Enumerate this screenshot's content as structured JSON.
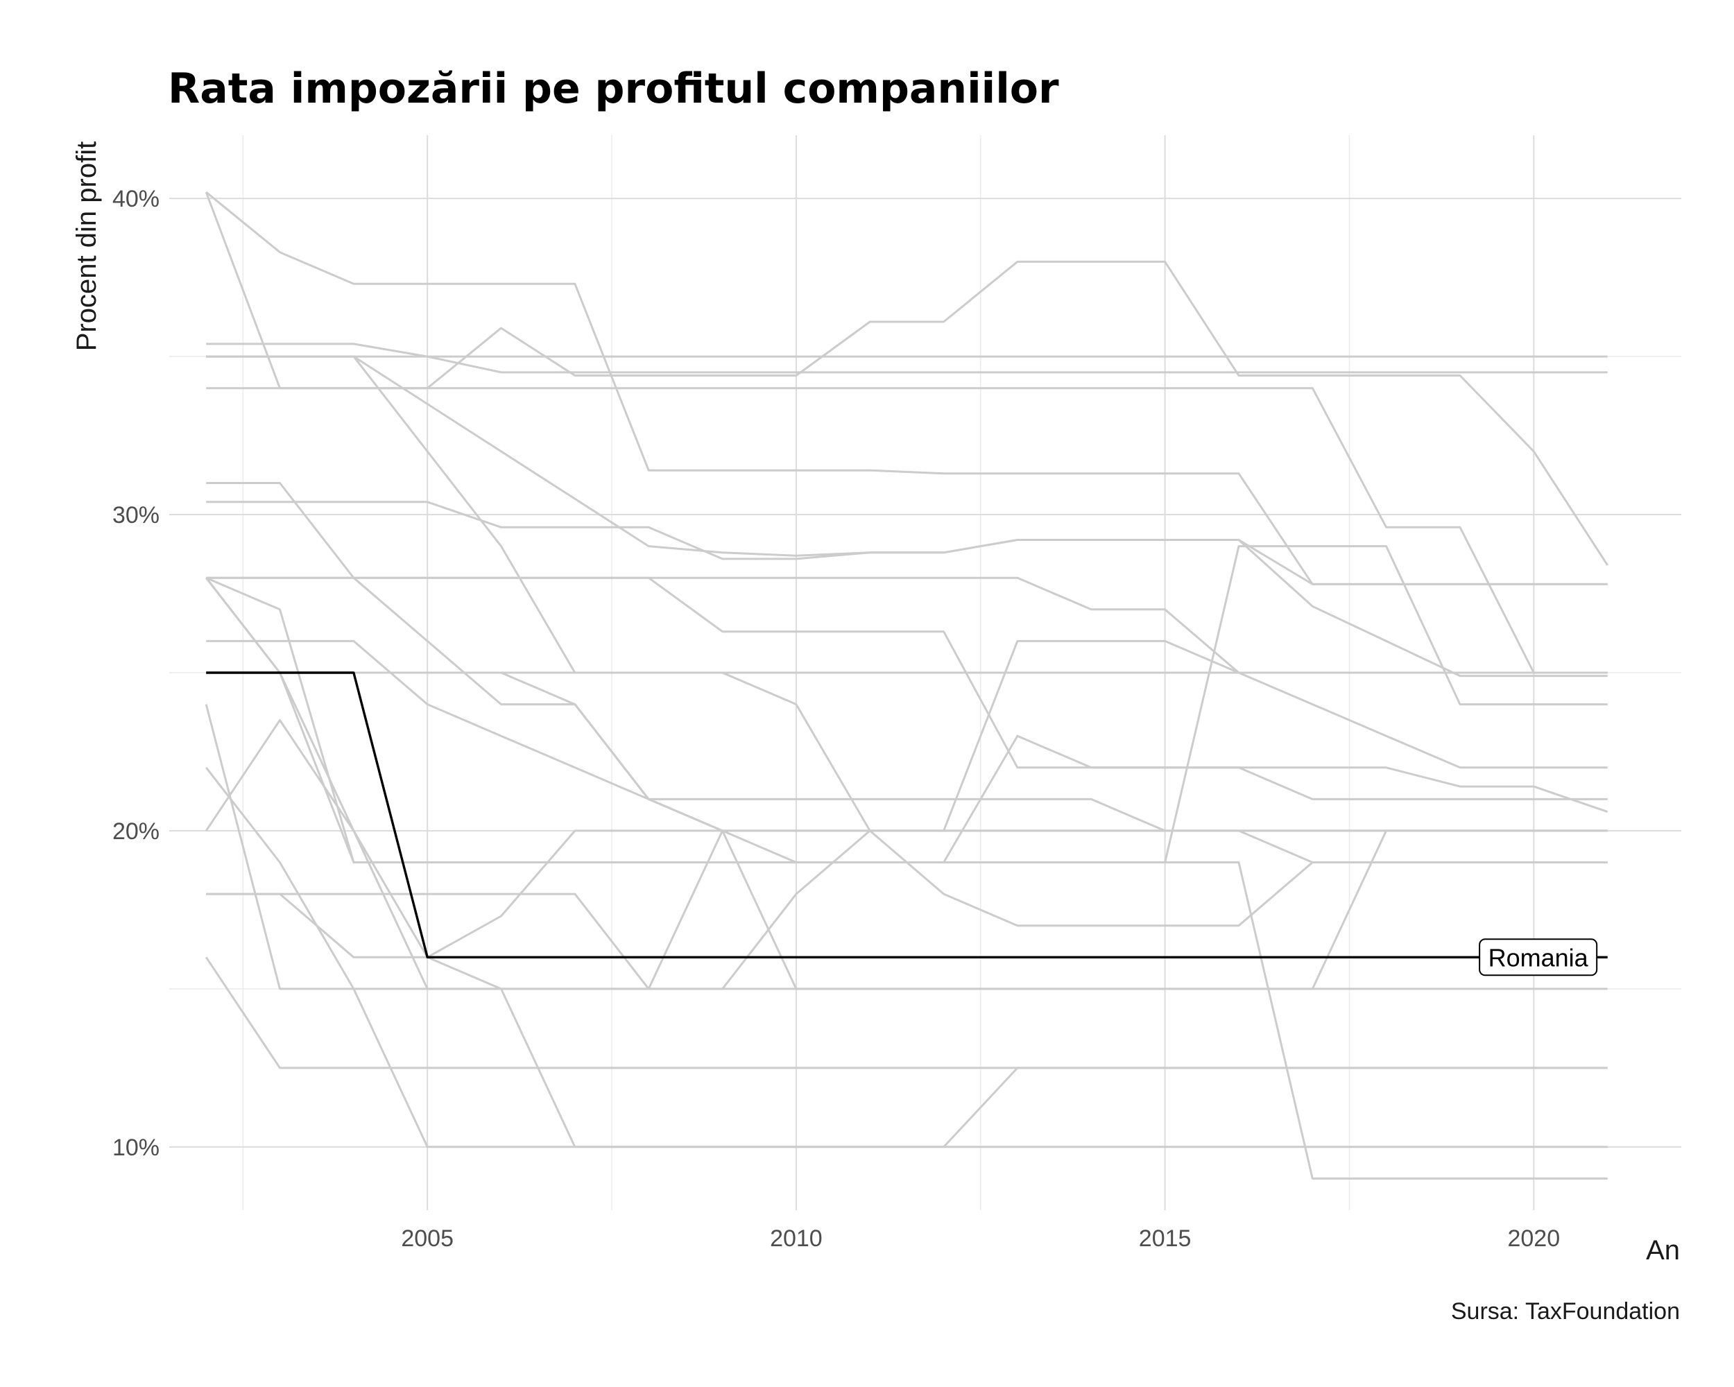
{
  "chart_data": {
    "type": "line",
    "title": "Rata impozării pe profitul companiilor",
    "xlabel": "An",
    "ylabel": "Procent din profit",
    "caption": "Sursa: TaxFoundation",
    "xlim": [
      2001.5,
      2022
    ],
    "ylim": [
      8,
      42
    ],
    "x_ticks": [
      2005,
      2010,
      2015,
      2020
    ],
    "y_ticks": [
      {
        "value": 10,
        "label": "10%"
      },
      {
        "value": 20,
        "label": "20%"
      },
      {
        "value": 30,
        "label": "30%"
      },
      {
        "value": 40,
        "label": "40%"
      }
    ],
    "grid": true,
    "line_color": "#cccccc",
    "highlight_color": "#000000",
    "x": [
      2002,
      2003,
      2004,
      2005,
      2006,
      2007,
      2008,
      2009,
      2010,
      2011,
      2012,
      2013,
      2014,
      2015,
      2016,
      2017,
      2018,
      2019,
      2020,
      2021
    ],
    "highlight": {
      "name": "Romania",
      "values": [
        25,
        25,
        25,
        16,
        16,
        16,
        16,
        16,
        16,
        16,
        16,
        16,
        16,
        16,
        16,
        16,
        16,
        16,
        16,
        16
      ]
    },
    "series": [
      {
        "values": [
          40.2,
          38.3,
          37.3,
          37.3,
          37.3,
          37.3,
          31.4,
          31.4,
          31.4,
          31.4,
          31.3,
          31.3,
          31.3,
          31.3,
          31.3,
          27.8,
          27.8,
          27.8,
          27.8,
          27.8
        ]
      },
      {
        "values": [
          40.2,
          34,
          34,
          34,
          35.9,
          34.4,
          34.4,
          34.4,
          34.4,
          36.1,
          36.1,
          38,
          38,
          38,
          34.4,
          34.4,
          34.4,
          34.4,
          32,
          28.4
        ]
      },
      {
        "values": [
          35.4,
          35.4,
          35.4,
          35,
          34.5,
          34.5,
          34.5,
          34.5,
          34.5,
          34.5,
          34.5,
          34.5,
          34.5,
          34.5,
          34.5,
          34.5,
          34.5,
          34.5,
          34.5,
          34.5
        ]
      },
      {
        "values": [
          35,
          35,
          35,
          35,
          35,
          35,
          35,
          35,
          35,
          35,
          35,
          35,
          35,
          35,
          35,
          35,
          35,
          35,
          35,
          35
        ]
      },
      {
        "values": [
          34,
          34,
          34,
          34,
          34,
          34,
          34,
          34,
          34,
          34,
          34,
          34,
          34,
          34,
          34,
          34,
          29.6,
          29.6,
          25,
          25
        ]
      },
      {
        "values": [
          35,
          35,
          35,
          32,
          29,
          25,
          25,
          25,
          25,
          25,
          25,
          25,
          25,
          25,
          25,
          25,
          25,
          25,
          25,
          25
        ]
      },
      {
        "values": [
          35,
          35,
          35,
          33.5,
          32,
          30.5,
          29,
          28.8,
          28.7,
          28.8,
          28.8,
          29.2,
          29.2,
          29.2,
          29.2,
          27.1,
          26,
          24.9,
          24.9,
          24.9
        ]
      },
      {
        "values": [
          31,
          31,
          28,
          26,
          24,
          24,
          21,
          21,
          21,
          21,
          21,
          21,
          21,
          20,
          20,
          20,
          20,
          20,
          20,
          20
        ]
      },
      {
        "values": [
          30.4,
          30.4,
          30.4,
          30.4,
          29.6,
          29.6,
          29.6,
          28.6,
          28.6,
          28.8,
          28.8,
          29.2,
          29.2,
          29.2,
          29.2,
          27.8,
          27.8,
          27.8,
          27.8,
          27.8
        ]
      },
      {
        "values": [
          28,
          28,
          28,
          28,
          28,
          28,
          28,
          28,
          28,
          28,
          28,
          28,
          27,
          27,
          25,
          24,
          23,
          22,
          22,
          22
        ]
      },
      {
        "values": [
          28,
          28,
          28,
          28,
          28,
          28,
          28,
          26.3,
          26.3,
          26.3,
          26.3,
          22,
          22,
          22,
          22,
          21,
          21,
          21,
          21,
          21
        ]
      },
      {
        "values": [
          28,
          27,
          19,
          19,
          19,
          19,
          19,
          19,
          19,
          19,
          19,
          19,
          19,
          19,
          29,
          29,
          29,
          24,
          24,
          24
        ]
      },
      {
        "values": [
          26,
          26,
          26,
          24,
          23,
          22,
          21,
          20,
          19,
          19,
          19,
          23,
          22,
          22,
          22,
          22,
          22,
          21.4,
          21.4,
          20.6
        ]
      },
      {
        "values": [
          28,
          25,
          25,
          25,
          25,
          24,
          21,
          20,
          20,
          20,
          20,
          20,
          20,
          20,
          20,
          19,
          19,
          19,
          19,
          19
        ]
      },
      {
        "values": [
          24,
          15,
          15,
          15,
          15,
          15,
          15,
          15,
          15,
          15,
          15,
          15,
          15,
          15,
          15,
          15,
          15,
          15,
          15,
          15
        ]
      },
      {
        "values": [
          22,
          19,
          15,
          10,
          10,
          10,
          10,
          10,
          10,
          10,
          10,
          10,
          10,
          10,
          10,
          10,
          10,
          10,
          10,
          10
        ]
      },
      {
        "values": [
          20,
          23.5,
          20,
          16,
          17.3,
          20,
          20,
          20,
          20,
          20,
          20,
          20,
          20,
          20,
          20,
          20,
          20,
          20,
          20,
          20
        ]
      },
      {
        "values": [
          18,
          18,
          18,
          18,
          18,
          18,
          15,
          20,
          15,
          15,
          15,
          15,
          15,
          15,
          15,
          15,
          20,
          20,
          20,
          20
        ]
      },
      {
        "values": [
          18,
          18,
          16,
          16,
          15,
          15,
          15,
          15,
          18,
          20,
          18,
          17,
          17,
          17,
          17,
          19,
          19,
          19,
          19,
          19
        ]
      },
      {
        "values": [
          16,
          12.5,
          12.5,
          12.5,
          12.5,
          12.5,
          12.5,
          12.5,
          12.5,
          12.5,
          12.5,
          12.5,
          12.5,
          12.5,
          12.5,
          12.5,
          12.5,
          12.5,
          12.5,
          12.5
        ]
      },
      {
        "values": [
          28,
          25,
          20,
          15,
          15,
          10,
          10,
          10,
          10,
          10,
          10,
          12.5,
          12.5,
          12.5,
          12.5,
          12.5,
          12.5,
          12.5,
          12.5,
          12.5
        ]
      },
      {
        "values": [
          25,
          25,
          19,
          19,
          19,
          19,
          19,
          19,
          19,
          19,
          19,
          19,
          19,
          19,
          19,
          9,
          9,
          9,
          9,
          9
        ]
      },
      {
        "values": [
          25,
          25,
          25,
          25,
          25,
          25,
          25,
          25,
          24,
          20,
          20,
          26,
          26,
          26,
          25,
          25,
          25,
          25,
          25,
          25
        ]
      }
    ]
  }
}
